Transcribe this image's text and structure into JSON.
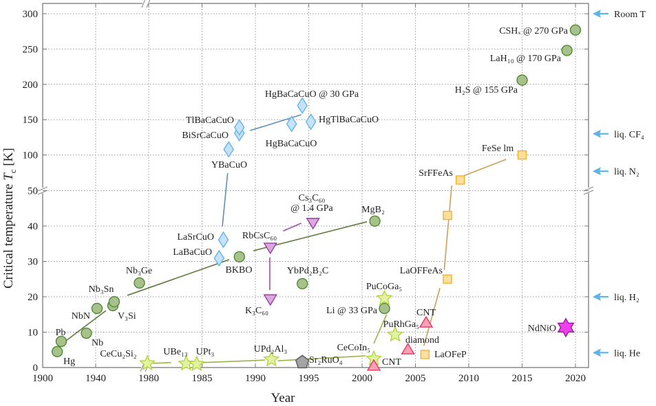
{
  "chart_data": {
    "type": "scatter",
    "xlabel": "Year",
    "ylabel": {
      "prefix": "Critical temperature ",
      "symbol": "T",
      "subscript": "c",
      "suffix": " [K]"
    },
    "x_scale": "broken: compressed 1900–1980, expanded 1980–2020",
    "y_scale": "broken at 50: 0–50 expanded, 50–300 compressed",
    "xlim": [
      1900,
      2021
    ],
    "ylim": [
      0,
      315
    ],
    "grid": true,
    "x_ticks": [
      {
        "value": 1900,
        "label": "1900"
      },
      {
        "value": 1940,
        "label": "1940"
      },
      {
        "value": 1980,
        "label": "1980"
      },
      {
        "value": 1985,
        "label": "1985"
      },
      {
        "value": 1990,
        "label": "1990"
      },
      {
        "value": 1995,
        "label": "1995"
      },
      {
        "value": 2000,
        "label": "2000"
      },
      {
        "value": 2005,
        "label": "2005"
      },
      {
        "value": 2010,
        "label": "2010"
      },
      {
        "value": 2015,
        "label": "2015"
      },
      {
        "value": 2020,
        "label": "2020"
      }
    ],
    "y_ticks": [
      {
        "value": 0,
        "label": "0"
      },
      {
        "value": 10,
        "label": "10"
      },
      {
        "value": 20,
        "label": "20"
      },
      {
        "value": 30,
        "label": "30"
      },
      {
        "value": 40,
        "label": "40"
      },
      {
        "value": 50,
        "label": "50"
      },
      {
        "value": 100,
        "label": "100"
      },
      {
        "value": 150,
        "label": "150"
      },
      {
        "value": 200,
        "label": "200"
      },
      {
        "value": 250,
        "label": "250"
      },
      {
        "value": 300,
        "label": "300"
      }
    ],
    "marker_styles": {
      "circle": {
        "fill": "#a8c08a",
        "stroke": "#4f8a36"
      },
      "diamond": {
        "fill": "#c6e2f8",
        "stroke": "#62b4ec"
      },
      "triangle-down": {
        "fill": "#d8a8de",
        "stroke": "#9a3fa0"
      },
      "star": {
        "fill": "#e2f2a2",
        "stroke": "#b2d640"
      },
      "pentagon": {
        "fill": "#a4a4a4",
        "stroke": "#555555"
      },
      "triangle-up": {
        "fill": "#f7a2b2",
        "stroke": "#e8346a"
      },
      "square": {
        "fill": "#fde0a0",
        "stroke": "#f5b030"
      },
      "hexagram": {
        "fill": "#f040ee",
        "stroke": "#9a1a9a"
      }
    },
    "points": [
      {
        "label": "Hg",
        "year": 1911,
        "tc": 4.5,
        "marker": "circle"
      },
      {
        "label": "Pb",
        "year": 1914,
        "tc": 7.4,
        "marker": "circle"
      },
      {
        "label": "Nb",
        "year": 1933,
        "tc": 9.7,
        "marker": "circle"
      },
      {
        "label": "NbN",
        "year": 1941,
        "tc": 16.7,
        "marker": "circle"
      },
      {
        "label": "V₃Si",
        "year": 1953,
        "tc": 17.5,
        "marker": "circle"
      },
      {
        "label": "Nb₃Sn",
        "year": 1954,
        "tc": 18.6,
        "marker": "circle"
      },
      {
        "label": "Nb₃Ge",
        "year": 1973,
        "tc": 23.9,
        "marker": "circle"
      },
      {
        "label": "BKBO",
        "year": 1988.5,
        "tc": 31.3,
        "marker": "circle"
      },
      {
        "label": "YbPd₂B₂C",
        "year": 1994.4,
        "tc": 23.7,
        "marker": "circle"
      },
      {
        "label": "MgB₂",
        "year": 2001.2,
        "tc": 41.4,
        "marker": "circle"
      },
      {
        "label": "Li @ 33 GPa",
        "year": 2002.1,
        "tc": 16.7,
        "marker": "circle"
      },
      {
        "label": "H₂S @ 155 GPa",
        "year": 2015,
        "tc": 206,
        "marker": "circle"
      },
      {
        "label": "LaH₁₀ @  170 GPa",
        "year": 2019.2,
        "tc": 248,
        "marker": "circle"
      },
      {
        "label": "CSHₓ @  270 GPa",
        "year": 2020,
        "tc": 277,
        "marker": "circle"
      },
      {
        "label": "LaBaCuO",
        "year": 1986.6,
        "tc": 30.9,
        "marker": "diamond"
      },
      {
        "label": "LaSrCuO",
        "year": 1987,
        "tc": 36.1,
        "marker": "diamond"
      },
      {
        "label": "YBaCuO",
        "year": 1987.5,
        "tc": 108,
        "marker": "diamond"
      },
      {
        "label": "BiSrCaCuO",
        "year": 1988.5,
        "tc": 131,
        "marker": "diamond"
      },
      {
        "label": "TlBaCaCuO",
        "year": 1988.5,
        "tc": 139,
        "marker": "diamond"
      },
      {
        "label": "HgBaCaCuO",
        "year": 1993.4,
        "tc": 144,
        "marker": "diamond"
      },
      {
        "label": "HgBaCaCuO @ 30 GPa",
        "year": 1994.4,
        "tc": 170,
        "marker": "diamond"
      },
      {
        "label": "HgTlBaCaCuO",
        "year": 1995.2,
        "tc": 147,
        "marker": "diamond"
      },
      {
        "label": "K₃C₆₀",
        "year": 1991.4,
        "tc": 19.2,
        "marker": "triangle-down"
      },
      {
        "label": "RbCsC₆₀",
        "year": 1991.4,
        "tc": 33.8,
        "marker": "triangle-down"
      },
      {
        "label": "Cs₃C₆₀",
        "label2": "@ 1.4 GPa",
        "year": 1995.4,
        "tc": 40.8,
        "marker": "triangle-down"
      },
      {
        "label": "CeCu₂Si₂",
        "year": 1979,
        "tc": 1.2,
        "marker": "star"
      },
      {
        "label": "UBe₁₃",
        "year": 1983.5,
        "tc": 1.1,
        "marker": "star"
      },
      {
        "label": "UPt₃",
        "year": 1984.5,
        "tc": 1.0,
        "marker": "star"
      },
      {
        "label": "UPd₂Al₃",
        "year": 1991.5,
        "tc": 2.3,
        "marker": "star"
      },
      {
        "label": "CeCoIn₅",
        "year": 2001.1,
        "tc": 2.5,
        "marker": "star"
      },
      {
        "label": "PuCoGa₅",
        "year": 2002.1,
        "tc": 19.6,
        "marker": "star"
      },
      {
        "label": "PuRhGa₅",
        "year": 2003.1,
        "tc": 9.3,
        "marker": "star"
      },
      {
        "label": "Sr₂RuO₄",
        "year": 1994.4,
        "tc": 1.5,
        "marker": "pentagon"
      },
      {
        "label": "CNT",
        "year": 2001.1,
        "tc": 0.6,
        "marker": "triangle-up"
      },
      {
        "label": "diamond",
        "year": 2004.3,
        "tc": 5.2,
        "marker": "triangle-up"
      },
      {
        "label": "CNT",
        "year": 2006,
        "tc": 12.8,
        "marker": "triangle-up"
      },
      {
        "label": "LaOFeP",
        "year": 2005.9,
        "tc": 3.7,
        "marker": "square"
      },
      {
        "label": "LaOFFeAs",
        "year": 2008,
        "tc": 25,
        "marker": "square"
      },
      {
        "label": "",
        "year": 2008,
        "tc": 43,
        "marker": "square"
      },
      {
        "label": "SrFFeAs",
        "year": 2009.2,
        "tc": 64.6,
        "marker": "square"
      },
      {
        "label": "FeSe   lm",
        "year": 2015,
        "tc": 100,
        "marker": "square"
      },
      {
        "label": "NdNiO",
        "year": 2019.1,
        "tc": 11.3,
        "marker": "hexagram"
      }
    ],
    "trend_lines": [
      {
        "color": "#5c7a3c",
        "from": [
          1917.7,
          7.6
        ],
        "to": [
          1947.8,
          16.1
        ]
      },
      {
        "color": "#5c7a3c",
        "from": [
          1963.9,
          20.4
        ],
        "to": [
          1987.55,
          30.5
        ]
      },
      {
        "color": "#5c7a3c",
        "from": [
          1989.8,
          33.0
        ],
        "to": [
          2000.45,
          41.2
        ]
      },
      {
        "color": "#5f8fb8",
        "from": [
          1986.9,
          39.8
        ],
        "to": [
          1987.4,
          74.3
        ]
      },
      {
        "color": "#5f8fb8",
        "from": [
          1989.5,
          134.6
        ],
        "to": [
          1994.3,
          157
        ]
      },
      {
        "color": "#a050a8",
        "from": [
          1991.35,
          31.1
        ],
        "to": [
          1991.35,
          21.9
        ]
      },
      {
        "color": "#a050a8",
        "from": [
          1992.6,
          38.6
        ],
        "to": [
          1994.3,
          40.8
        ]
      },
      {
        "color": "#9cb24a",
        "from": [
          1980.4,
          1.2
        ],
        "to": [
          1982.1,
          1.4
        ]
      },
      {
        "color": "#9cb24a",
        "from": [
          1985,
          1.4
        ],
        "to": [
          1990.9,
          2.1
        ]
      },
      {
        "color": "#9cb24a",
        "from": [
          1992.1,
          1.9
        ],
        "to": [
          2000.3,
          3.3
        ]
      },
      {
        "color": "#9cb24a",
        "from": [
          2001.1,
          6.8
        ],
        "to": [
          2002.3,
          15
        ]
      },
      {
        "color": "#c8a05a",
        "from": [
          2005.8,
          6.2
        ],
        "to": [
          2007.3,
          22.5
        ]
      },
      {
        "color": "#c8a05a",
        "from": [
          2007.7,
          27.6
        ],
        "to": [
          2008.4,
          56.8
        ]
      },
      {
        "color": "#c8a05a",
        "from": [
          2009.5,
          70.4
        ],
        "to": [
          2013.5,
          93.8
        ]
      }
    ],
    "reference_levels": [
      {
        "label": "Room T",
        "tc": 300
      },
      {
        "label": "liq. CF₄",
        "tc": 130
      },
      {
        "label": "liq. N₂",
        "tc": 77
      },
      {
        "label": "liq. H₂",
        "tc": 20
      },
      {
        "label": "liq. He",
        "tc": 4.2
      }
    ],
    "arrow_color": "#5ab4e8"
  }
}
